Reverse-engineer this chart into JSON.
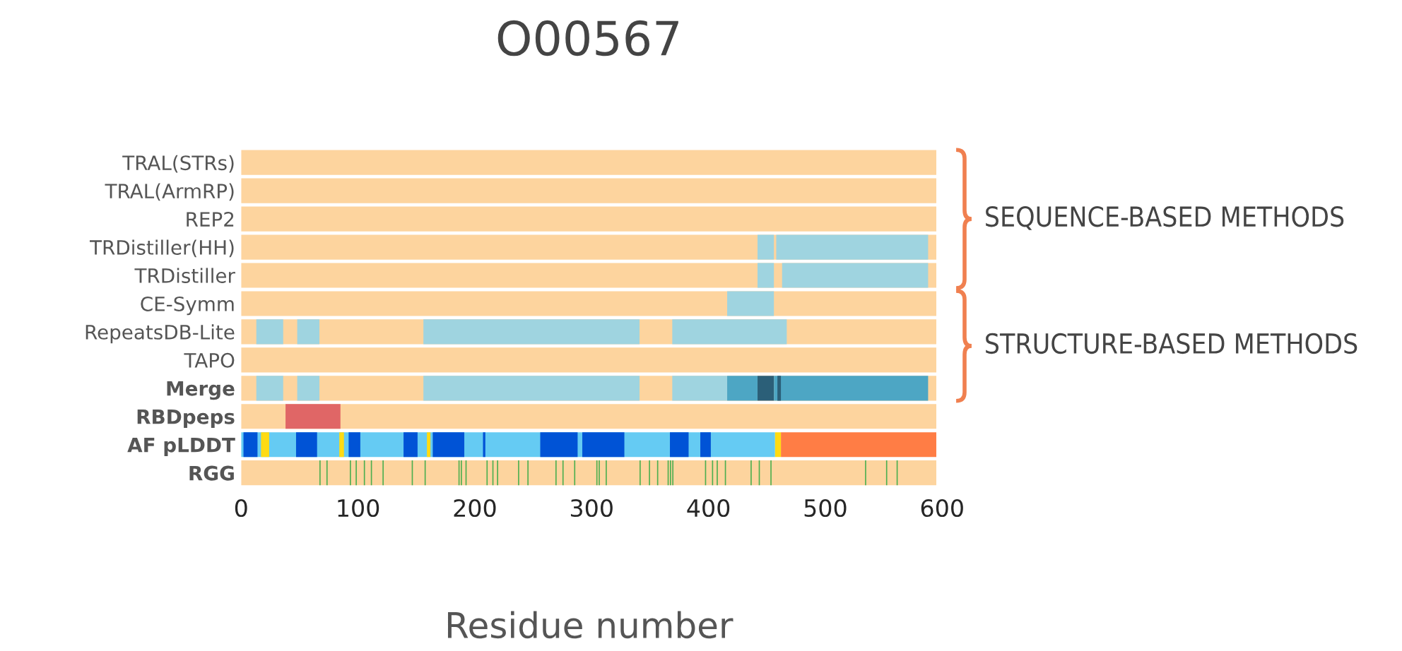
{
  "chart_data": {
    "type": "bar",
    "orientation": "horizontal",
    "title": "O00567",
    "xlabel": "Residue number",
    "categories": [
      "TRAL(STRs)",
      "TRAL(ArmRP)",
      "REP2",
      "TRDistiller(HH)",
      "TRDistiller",
      "CE-Symm",
      "RepeatsDB-Lite",
      "TAPO",
      "Merge",
      "RBDpeps",
      "AF pLDDT",
      "RGG"
    ],
    "xlim": [
      0,
      600
    ],
    "xticks": [
      0,
      100,
      200,
      300,
      400,
      500,
      600
    ],
    "grid": false,
    "legend": false,
    "annotations": [
      "SEQUENCE-BASED METHODS",
      "STRUCTURE-BASED METHODS"
    ],
    "series": [
      {
        "color": "#fdd49e",
        "base": [
          0,
          0,
          0,
          0,
          0,
          0,
          0,
          0,
          0,
          0,
          null,
          0
        ],
        "values": [
          595,
          595,
          595,
          595,
          595,
          595,
          595,
          595,
          595,
          595,
          null,
          595
        ]
      },
      {
        "color": "#9fd4e0",
        "base": [
          null,
          null,
          null,
          442,
          442,
          416,
          13,
          null,
          13,
          null,
          null,
          null
        ],
        "values": [
          null,
          null,
          null,
          14,
          14,
          40,
          23,
          null,
          23,
          null,
          null,
          null
        ]
      },
      {
        "color": "#9fd4e0",
        "base": [
          null,
          null,
          null,
          458,
          463,
          null,
          48,
          null,
          48,
          null,
          null,
          null
        ],
        "values": [
          null,
          null,
          null,
          130,
          125,
          null,
          19,
          null,
          19,
          null,
          null,
          null
        ]
      },
      {
        "color": "#9fd4e0",
        "base": [
          null,
          null,
          null,
          null,
          null,
          null,
          156,
          null,
          156,
          null,
          null,
          null
        ],
        "values": [
          null,
          null,
          null,
          null,
          null,
          null,
          185,
          null,
          185,
          null,
          null,
          null
        ]
      },
      {
        "color": "#9fd4e0",
        "base": [
          null,
          null,
          null,
          null,
          null,
          null,
          369,
          null,
          369,
          null,
          null,
          null
        ],
        "values": [
          null,
          null,
          null,
          null,
          null,
          null,
          98,
          null,
          47,
          null,
          null,
          null
        ]
      },
      {
        "color": "#4da6c4",
        "base": [
          null,
          null,
          null,
          null,
          null,
          null,
          null,
          null,
          416,
          null,
          null,
          null
        ],
        "values": [
          null,
          null,
          null,
          null,
          null,
          null,
          null,
          null,
          26,
          null,
          null,
          null
        ]
      },
      {
        "color": "#2b5f78",
        "base": [
          null,
          null,
          null,
          null,
          null,
          null,
          null,
          null,
          442,
          null,
          null,
          null
        ],
        "values": [
          null,
          null,
          null,
          null,
          null,
          null,
          null,
          null,
          14,
          null,
          null,
          null
        ]
      },
      {
        "color": "#4da6c4",
        "base": [
          null,
          null,
          null,
          null,
          null,
          null,
          null,
          null,
          456,
          null,
          null,
          null
        ],
        "values": [
          null,
          null,
          null,
          null,
          null,
          null,
          null,
          null,
          132,
          null,
          null,
          null
        ]
      },
      {
        "color": "#2b5f78",
        "base": [
          null,
          null,
          null,
          null,
          null,
          null,
          null,
          null,
          459,
          null,
          null,
          null
        ],
        "values": [
          null,
          null,
          null,
          null,
          null,
          null,
          null,
          null,
          3,
          null,
          null,
          null
        ]
      },
      {
        "color": "#e06666",
        "base": [
          null,
          null,
          null,
          null,
          null,
          null,
          null,
          null,
          null,
          38,
          null,
          null
        ],
        "values": [
          null,
          null,
          null,
          null,
          null,
          null,
          null,
          null,
          null,
          47,
          null,
          null
        ]
      },
      {
        "color": "#65cbf3",
        "base": [
          null,
          null,
          null,
          null,
          null,
          null,
          null,
          null,
          null,
          null,
          0,
          null
        ],
        "values": [
          null,
          null,
          null,
          null,
          null,
          null,
          null,
          null,
          null,
          null,
          457,
          null
        ]
      },
      {
        "color": "#ff7d45",
        "base": [
          null,
          null,
          null,
          null,
          null,
          null,
          null,
          null,
          null,
          null,
          462,
          null
        ],
        "values": [
          null,
          null,
          null,
          null,
          null,
          null,
          null,
          null,
          null,
          null,
          133,
          null
        ]
      },
      {
        "color": "#ffdb13",
        "base": [
          null,
          null,
          null,
          null,
          null,
          null,
          null,
          null,
          null,
          null,
          17,
          null
        ],
        "values": [
          null,
          null,
          null,
          null,
          null,
          null,
          null,
          null,
          null,
          null,
          7,
          null
        ]
      },
      {
        "color": "#ffdb13",
        "base": [
          null,
          null,
          null,
          null,
          null,
          null,
          null,
          null,
          null,
          null,
          84,
          null
        ],
        "values": [
          null,
          null,
          null,
          null,
          null,
          null,
          null,
          null,
          null,
          null,
          4,
          null
        ]
      },
      {
        "color": "#ffdb13",
        "base": [
          null,
          null,
          null,
          null,
          null,
          null,
          null,
          null,
          null,
          null,
          159,
          null
        ],
        "values": [
          null,
          null,
          null,
          null,
          null,
          null,
          null,
          null,
          null,
          null,
          3,
          null
        ]
      },
      {
        "color": "#ffdb13",
        "base": [
          null,
          null,
          null,
          null,
          null,
          null,
          null,
          null,
          null,
          null,
          457,
          null
        ],
        "values": [
          null,
          null,
          null,
          null,
          null,
          null,
          null,
          null,
          null,
          null,
          5,
          null
        ]
      },
      {
        "color": "#0053d6",
        "base": [
          null,
          null,
          null,
          null,
          null,
          null,
          null,
          null,
          null,
          null,
          2,
          null
        ],
        "values": [
          null,
          null,
          null,
          null,
          null,
          null,
          null,
          null,
          null,
          null,
          12,
          null
        ]
      },
      {
        "color": "#0053d6",
        "base": [
          null,
          null,
          null,
          null,
          null,
          null,
          null,
          null,
          null,
          null,
          47,
          null
        ],
        "values": [
          null,
          null,
          null,
          null,
          null,
          null,
          null,
          null,
          null,
          null,
          18,
          null
        ]
      },
      {
        "color": "#0053d6",
        "base": [
          null,
          null,
          null,
          null,
          null,
          null,
          null,
          null,
          null,
          null,
          92,
          null
        ],
        "values": [
          null,
          null,
          null,
          null,
          null,
          null,
          null,
          null,
          null,
          null,
          10,
          null
        ]
      },
      {
        "color": "#0053d6",
        "base": [
          null,
          null,
          null,
          null,
          null,
          null,
          null,
          null,
          null,
          null,
          139,
          null
        ],
        "values": [
          null,
          null,
          null,
          null,
          null,
          null,
          null,
          null,
          null,
          null,
          12,
          null
        ]
      },
      {
        "color": "#0053d6",
        "base": [
          null,
          null,
          null,
          null,
          null,
          null,
          null,
          null,
          null,
          null,
          164,
          null
        ],
        "values": [
          null,
          null,
          null,
          null,
          null,
          null,
          null,
          null,
          null,
          null,
          27,
          null
        ]
      },
      {
        "color": "#0053d6",
        "base": [
          null,
          null,
          null,
          null,
          null,
          null,
          null,
          null,
          null,
          null,
          207,
          null
        ],
        "values": [
          null,
          null,
          null,
          null,
          null,
          null,
          null,
          null,
          null,
          null,
          2,
          null
        ]
      },
      {
        "color": "#0053d6",
        "base": [
          null,
          null,
          null,
          null,
          null,
          null,
          null,
          null,
          null,
          null,
          256,
          null
        ],
        "values": [
          null,
          null,
          null,
          null,
          null,
          null,
          null,
          null,
          null,
          null,
          32,
          null
        ]
      },
      {
        "color": "#0053d6",
        "base": [
          null,
          null,
          null,
          null,
          null,
          null,
          null,
          null,
          null,
          null,
          292,
          null
        ],
        "values": [
          null,
          null,
          null,
          null,
          null,
          null,
          null,
          null,
          null,
          null,
          36,
          null
        ]
      },
      {
        "color": "#0053d6",
        "base": [
          null,
          null,
          null,
          null,
          null,
          null,
          null,
          null,
          null,
          null,
          367,
          null
        ],
        "values": [
          null,
          null,
          null,
          null,
          null,
          null,
          null,
          null,
          null,
          null,
          16,
          null
        ]
      },
      {
        "color": "#0053d6",
        "base": [
          null,
          null,
          null,
          null,
          null,
          null,
          null,
          null,
          null,
          null,
          393,
          null
        ],
        "values": [
          null,
          null,
          null,
          null,
          null,
          null,
          null,
          null,
          null,
          null,
          9,
          null
        ]
      },
      {
        "color": "#4caf50",
        "base": [
          null,
          null,
          null,
          null,
          null,
          null,
          null,
          null,
          null,
          null,
          null,
          67
        ],
        "values": [
          null,
          null,
          null,
          null,
          null,
          null,
          null,
          null,
          null,
          null,
          null,
          1
        ]
      },
      {
        "color": "#4caf50",
        "base": [
          null,
          null,
          null,
          null,
          null,
          null,
          null,
          null,
          null,
          null,
          null,
          73
        ],
        "values": [
          null,
          null,
          null,
          null,
          null,
          null,
          null,
          null,
          null,
          null,
          null,
          1
        ]
      },
      {
        "color": "#4caf50",
        "base": [
          null,
          null,
          null,
          null,
          null,
          null,
          null,
          null,
          null,
          null,
          null,
          93
        ],
        "values": [
          null,
          null,
          null,
          null,
          null,
          null,
          null,
          null,
          null,
          null,
          null,
          1
        ]
      },
      {
        "color": "#4caf50",
        "base": [
          null,
          null,
          null,
          null,
          null,
          null,
          null,
          null,
          null,
          null,
          null,
          98
        ],
        "values": [
          null,
          null,
          null,
          null,
          null,
          null,
          null,
          null,
          null,
          null,
          null,
          1
        ]
      },
      {
        "color": "#4caf50",
        "base": [
          null,
          null,
          null,
          null,
          null,
          null,
          null,
          null,
          null,
          null,
          null,
          105
        ],
        "values": [
          null,
          null,
          null,
          null,
          null,
          null,
          null,
          null,
          null,
          null,
          null,
          1
        ]
      },
      {
        "color": "#4caf50",
        "base": [
          null,
          null,
          null,
          null,
          null,
          null,
          null,
          null,
          null,
          null,
          null,
          111
        ],
        "values": [
          null,
          null,
          null,
          null,
          null,
          null,
          null,
          null,
          null,
          null,
          null,
          1
        ]
      },
      {
        "color": "#4caf50",
        "base": [
          null,
          null,
          null,
          null,
          null,
          null,
          null,
          null,
          null,
          null,
          null,
          121
        ],
        "values": [
          null,
          null,
          null,
          null,
          null,
          null,
          null,
          null,
          null,
          null,
          null,
          1
        ]
      },
      {
        "color": "#4caf50",
        "base": [
          null,
          null,
          null,
          null,
          null,
          null,
          null,
          null,
          null,
          null,
          null,
          146
        ],
        "values": [
          null,
          null,
          null,
          null,
          null,
          null,
          null,
          null,
          null,
          null,
          null,
          1
        ]
      },
      {
        "color": "#4caf50",
        "base": [
          null,
          null,
          null,
          null,
          null,
          null,
          null,
          null,
          null,
          null,
          null,
          157
        ],
        "values": [
          null,
          null,
          null,
          null,
          null,
          null,
          null,
          null,
          null,
          null,
          null,
          1
        ]
      },
      {
        "color": "#4caf50",
        "base": [
          null,
          null,
          null,
          null,
          null,
          null,
          null,
          null,
          null,
          null,
          null,
          186
        ],
        "values": [
          null,
          null,
          null,
          null,
          null,
          null,
          null,
          null,
          null,
          null,
          null,
          1
        ]
      },
      {
        "color": "#4caf50",
        "base": [
          null,
          null,
          null,
          null,
          null,
          null,
          null,
          null,
          null,
          null,
          null,
          188
        ],
        "values": [
          null,
          null,
          null,
          null,
          null,
          null,
          null,
          null,
          null,
          null,
          null,
          1
        ]
      },
      {
        "color": "#4caf50",
        "base": [
          null,
          null,
          null,
          null,
          null,
          null,
          null,
          null,
          null,
          null,
          null,
          192
        ],
        "values": [
          null,
          null,
          null,
          null,
          null,
          null,
          null,
          null,
          null,
          null,
          null,
          1
        ]
      },
      {
        "color": "#4caf50",
        "base": [
          null,
          null,
          null,
          null,
          null,
          null,
          null,
          null,
          null,
          null,
          null,
          210
        ],
        "values": [
          null,
          null,
          null,
          null,
          null,
          null,
          null,
          null,
          null,
          null,
          null,
          1
        ]
      },
      {
        "color": "#4caf50",
        "base": [
          null,
          null,
          null,
          null,
          null,
          null,
          null,
          null,
          null,
          null,
          null,
          215
        ],
        "values": [
          null,
          null,
          null,
          null,
          null,
          null,
          null,
          null,
          null,
          null,
          null,
          1
        ]
      },
      {
        "color": "#4caf50",
        "base": [
          null,
          null,
          null,
          null,
          null,
          null,
          null,
          null,
          null,
          null,
          null,
          219
        ],
        "values": [
          null,
          null,
          null,
          null,
          null,
          null,
          null,
          null,
          null,
          null,
          null,
          1
        ]
      },
      {
        "color": "#4caf50",
        "base": [
          null,
          null,
          null,
          null,
          null,
          null,
          null,
          null,
          null,
          null,
          null,
          237
        ],
        "values": [
          null,
          null,
          null,
          null,
          null,
          null,
          null,
          null,
          null,
          null,
          null,
          1
        ]
      },
      {
        "color": "#4caf50",
        "base": [
          null,
          null,
          null,
          null,
          null,
          null,
          null,
          null,
          null,
          null,
          null,
          245
        ],
        "values": [
          null,
          null,
          null,
          null,
          null,
          null,
          null,
          null,
          null,
          null,
          null,
          1
        ]
      },
      {
        "color": "#4caf50",
        "base": [
          null,
          null,
          null,
          null,
          null,
          null,
          null,
          null,
          null,
          null,
          null,
          269
        ],
        "values": [
          null,
          null,
          null,
          null,
          null,
          null,
          null,
          null,
          null,
          null,
          null,
          1
        ]
      },
      {
        "color": "#4caf50",
        "base": [
          null,
          null,
          null,
          null,
          null,
          null,
          null,
          null,
          null,
          null,
          null,
          275
        ],
        "values": [
          null,
          null,
          null,
          null,
          null,
          null,
          null,
          null,
          null,
          null,
          null,
          1
        ]
      },
      {
        "color": "#4caf50",
        "base": [
          null,
          null,
          null,
          null,
          null,
          null,
          null,
          null,
          null,
          null,
          null,
          285
        ],
        "values": [
          null,
          null,
          null,
          null,
          null,
          null,
          null,
          null,
          null,
          null,
          null,
          1
        ]
      },
      {
        "color": "#4caf50",
        "base": [
          null,
          null,
          null,
          null,
          null,
          null,
          null,
          null,
          null,
          null,
          null,
          304
        ],
        "values": [
          null,
          null,
          null,
          null,
          null,
          null,
          null,
          null,
          null,
          null,
          null,
          1
        ]
      },
      {
        "color": "#4caf50",
        "base": [
          null,
          null,
          null,
          null,
          null,
          null,
          null,
          null,
          null,
          null,
          null,
          306
        ],
        "values": [
          null,
          null,
          null,
          null,
          null,
          null,
          null,
          null,
          null,
          null,
          null,
          1
        ]
      },
      {
        "color": "#4caf50",
        "base": [
          null,
          null,
          null,
          null,
          null,
          null,
          null,
          null,
          null,
          null,
          null,
          312
        ],
        "values": [
          null,
          null,
          null,
          null,
          null,
          null,
          null,
          null,
          null,
          null,
          null,
          1
        ]
      },
      {
        "color": "#4caf50",
        "base": [
          null,
          null,
          null,
          null,
          null,
          null,
          null,
          null,
          null,
          null,
          null,
          341
        ],
        "values": [
          null,
          null,
          null,
          null,
          null,
          null,
          null,
          null,
          null,
          null,
          null,
          1
        ]
      },
      {
        "color": "#4caf50",
        "base": [
          null,
          null,
          null,
          null,
          null,
          null,
          null,
          null,
          null,
          null,
          null,
          349
        ],
        "values": [
          null,
          null,
          null,
          null,
          null,
          null,
          null,
          null,
          null,
          null,
          null,
          1
        ]
      },
      {
        "color": "#4caf50",
        "base": [
          null,
          null,
          null,
          null,
          null,
          null,
          null,
          null,
          null,
          null,
          null,
          356
        ],
        "values": [
          null,
          null,
          null,
          null,
          null,
          null,
          null,
          null,
          null,
          null,
          null,
          1
        ]
      },
      {
        "color": "#4caf50",
        "base": [
          null,
          null,
          null,
          null,
          null,
          null,
          null,
          null,
          null,
          null,
          null,
          365
        ],
        "values": [
          null,
          null,
          null,
          null,
          null,
          null,
          null,
          null,
          null,
          null,
          null,
          1
        ]
      },
      {
        "color": "#4caf50",
        "base": [
          null,
          null,
          null,
          null,
          null,
          null,
          null,
          null,
          null,
          null,
          null,
          367
        ],
        "values": [
          null,
          null,
          null,
          null,
          null,
          null,
          null,
          null,
          null,
          null,
          null,
          1
        ]
      },
      {
        "color": "#4caf50",
        "base": [
          null,
          null,
          null,
          null,
          null,
          null,
          null,
          null,
          null,
          null,
          null,
          369
        ],
        "values": [
          null,
          null,
          null,
          null,
          null,
          null,
          null,
          null,
          null,
          null,
          null,
          1
        ]
      },
      {
        "color": "#4caf50",
        "base": [
          null,
          null,
          null,
          null,
          null,
          null,
          null,
          null,
          null,
          null,
          null,
          397
        ],
        "values": [
          null,
          null,
          null,
          null,
          null,
          null,
          null,
          null,
          null,
          null,
          null,
          1
        ]
      },
      {
        "color": "#4caf50",
        "base": [
          null,
          null,
          null,
          null,
          null,
          null,
          null,
          null,
          null,
          null,
          null,
          403
        ],
        "values": [
          null,
          null,
          null,
          null,
          null,
          null,
          null,
          null,
          null,
          null,
          null,
          1
        ]
      },
      {
        "color": "#4caf50",
        "base": [
          null,
          null,
          null,
          null,
          null,
          null,
          null,
          null,
          null,
          null,
          null,
          407
        ],
        "values": [
          null,
          null,
          null,
          null,
          null,
          null,
          null,
          null,
          null,
          null,
          null,
          1
        ]
      },
      {
        "color": "#4caf50",
        "base": [
          null,
          null,
          null,
          null,
          null,
          null,
          null,
          null,
          null,
          null,
          null,
          414
        ],
        "values": [
          null,
          null,
          null,
          null,
          null,
          null,
          null,
          null,
          null,
          null,
          null,
          1
        ]
      },
      {
        "color": "#4caf50",
        "base": [
          null,
          null,
          null,
          null,
          null,
          null,
          null,
          null,
          null,
          null,
          null,
          436
        ],
        "values": [
          null,
          null,
          null,
          null,
          null,
          null,
          null,
          null,
          null,
          null,
          null,
          1
        ]
      },
      {
        "color": "#4caf50",
        "base": [
          null,
          null,
          null,
          null,
          null,
          null,
          null,
          null,
          null,
          null,
          null,
          443
        ],
        "values": [
          null,
          null,
          null,
          null,
          null,
          null,
          null,
          null,
          null,
          null,
          null,
          1
        ]
      },
      {
        "color": "#4caf50",
        "base": [
          null,
          null,
          null,
          null,
          null,
          null,
          null,
          null,
          null,
          null,
          null,
          453
        ],
        "values": [
          null,
          null,
          null,
          null,
          null,
          null,
          null,
          null,
          null,
          null,
          null,
          1
        ]
      },
      {
        "color": "#4caf50",
        "base": [
          null,
          null,
          null,
          null,
          null,
          null,
          null,
          null,
          null,
          null,
          null,
          534
        ],
        "values": [
          null,
          null,
          null,
          null,
          null,
          null,
          null,
          null,
          null,
          null,
          null,
          1
        ]
      },
      {
        "color": "#4caf50",
        "base": [
          null,
          null,
          null,
          null,
          null,
          null,
          null,
          null,
          null,
          null,
          null,
          552
        ],
        "values": [
          null,
          null,
          null,
          null,
          null,
          null,
          null,
          null,
          null,
          null,
          null,
          1
        ]
      },
      {
        "color": "#4caf50",
        "base": [
          null,
          null,
          null,
          null,
          null,
          null,
          null,
          null,
          null,
          null,
          null,
          561
        ],
        "values": [
          null,
          null,
          null,
          null,
          null,
          null,
          null,
          null,
          null,
          null,
          null,
          1
        ]
      }
    ]
  }
}
